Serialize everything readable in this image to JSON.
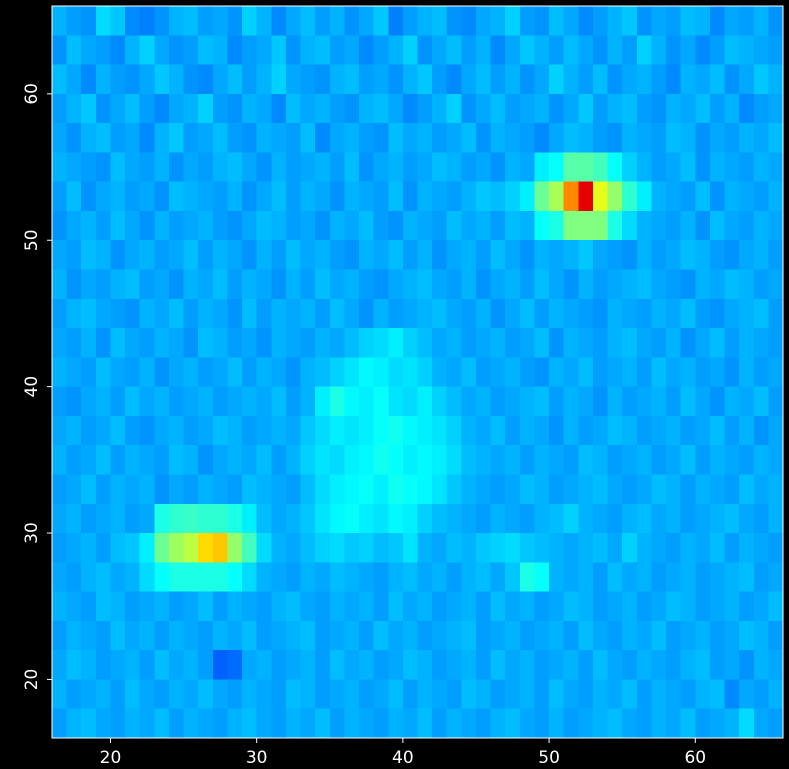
{
  "chart_data": {
    "type": "heatmap",
    "xlim": [
      16,
      66
    ],
    "ylim": [
      16,
      66
    ],
    "zlim": [
      0,
      100
    ],
    "xticks": [
      20,
      30,
      40,
      50,
      60
    ],
    "yticks": [
      20,
      30,
      40,
      50,
      60
    ],
    "colormap": "jet",
    "z": [
      [
        30,
        28,
        27,
        34,
        32,
        26,
        25,
        27,
        30,
        31,
        28,
        29,
        27,
        33,
        30,
        26,
        29,
        31,
        28,
        30,
        27,
        29,
        32,
        25,
        28,
        30,
        31,
        27,
        26,
        29,
        30,
        33,
        28,
        27,
        31,
        29,
        26,
        28,
        30,
        32,
        27,
        29,
        28,
        31,
        30,
        26,
        29,
        28,
        30,
        27
      ],
      [
        27,
        31,
        29,
        28,
        26,
        30,
        33,
        29,
        27,
        28,
        31,
        30,
        26,
        28,
        29,
        32,
        27,
        30,
        31,
        28,
        29,
        26,
        28,
        30,
        33,
        27,
        29,
        31,
        28,
        30,
        26,
        29,
        32,
        30,
        28,
        31,
        29,
        27,
        30,
        28,
        33,
        30,
        27,
        29,
        26,
        28,
        31,
        30,
        29,
        28
      ],
      [
        31,
        29,
        26,
        30,
        28,
        27,
        29,
        32,
        30,
        27,
        26,
        29,
        31,
        28,
        30,
        33,
        29,
        28,
        27,
        30,
        31,
        28,
        29,
        27,
        30,
        32,
        28,
        26,
        29,
        31,
        28,
        30,
        27,
        29,
        33,
        30,
        28,
        31,
        27,
        29,
        30,
        28,
        26,
        30,
        29,
        31,
        27,
        29,
        32,
        30
      ],
      [
        28,
        30,
        32,
        27,
        29,
        31,
        28,
        26,
        29,
        30,
        33,
        28,
        27,
        30,
        29,
        26,
        31,
        29,
        30,
        28,
        27,
        30,
        31,
        29,
        26,
        28,
        30,
        33,
        27,
        29,
        31,
        28,
        29,
        30,
        27,
        29,
        32,
        28,
        30,
        31,
        28,
        27,
        30,
        29,
        31,
        28,
        30,
        26,
        28,
        29
      ],
      [
        29,
        27,
        30,
        31,
        28,
        29,
        26,
        30,
        32,
        28,
        29,
        31,
        28,
        27,
        30,
        29,
        28,
        31,
        26,
        29,
        30,
        28,
        27,
        31,
        29,
        30,
        28,
        29,
        31,
        27,
        30,
        29,
        28,
        26,
        29,
        31,
        30,
        28,
        27,
        30,
        29,
        28,
        31,
        30,
        27,
        29,
        28,
        30,
        29,
        31
      ],
      [
        30,
        29,
        28,
        27,
        31,
        29,
        28,
        30,
        27,
        29,
        28,
        30,
        31,
        29,
        27,
        30,
        28,
        29,
        30,
        28,
        31,
        27,
        29,
        30,
        28,
        29,
        31,
        30,
        28,
        29,
        27,
        30,
        29,
        36,
        38,
        46,
        46,
        44,
        38,
        33,
        30,
        28,
        29,
        31,
        27,
        30,
        29,
        28,
        30,
        29
      ],
      [
        28,
        31,
        27,
        29,
        30,
        28,
        29,
        27,
        31,
        30,
        29,
        28,
        30,
        27,
        29,
        31,
        28,
        30,
        29,
        27,
        30,
        29,
        28,
        31,
        27,
        30,
        29,
        28,
        30,
        32,
        31,
        33,
        36,
        48,
        54,
        74,
        90,
        60,
        52,
        42,
        36,
        30,
        29,
        28,
        31,
        27,
        30,
        29,
        28,
        30
      ],
      [
        27,
        29,
        30,
        28,
        31,
        29,
        27,
        30,
        28,
        29,
        30,
        28,
        27,
        29,
        31,
        30,
        28,
        29,
        27,
        30,
        29,
        31,
        28,
        27,
        30,
        29,
        28,
        31,
        29,
        30,
        28,
        31,
        30,
        38,
        40,
        50,
        50,
        50,
        40,
        34,
        30,
        29,
        28,
        30,
        27,
        31,
        29,
        28,
        30,
        29
      ],
      [
        29,
        28,
        31,
        30,
        27,
        29,
        30,
        28,
        29,
        31,
        28,
        30,
        29,
        27,
        30,
        28,
        31,
        29,
        30,
        28,
        27,
        30,
        29,
        31,
        28,
        30,
        27,
        29,
        30,
        28,
        31,
        29,
        27,
        30,
        29,
        30,
        32,
        29,
        28,
        27,
        30,
        28,
        29,
        31,
        30,
        28,
        27,
        29,
        30,
        28
      ],
      [
        30,
        27,
        29,
        28,
        30,
        31,
        28,
        29,
        27,
        30,
        29,
        31,
        28,
        30,
        29,
        27,
        30,
        28,
        31,
        29,
        30,
        28,
        27,
        29,
        30,
        31,
        29,
        28,
        30,
        27,
        29,
        30,
        28,
        31,
        29,
        27,
        30,
        28,
        29,
        30,
        31,
        29,
        28,
        27,
        30,
        29,
        31,
        30,
        28,
        29
      ],
      [
        28,
        30,
        31,
        29,
        28,
        27,
        30,
        29,
        31,
        28,
        30,
        29,
        27,
        31,
        28,
        30,
        29,
        30,
        28,
        31,
        29,
        27,
        30,
        28,
        29,
        30,
        31,
        29,
        28,
        30,
        27,
        29,
        31,
        28,
        30,
        29,
        28,
        27,
        30,
        29,
        28,
        30,
        29,
        31,
        28,
        27,
        29,
        30,
        31,
        28
      ],
      [
        29,
        28,
        30,
        27,
        31,
        29,
        28,
        30,
        29,
        27,
        31,
        30,
        28,
        29,
        27,
        30,
        29,
        28,
        30,
        29,
        31,
        33,
        34,
        36,
        33,
        31,
        29,
        30,
        28,
        29,
        30,
        28,
        29,
        31,
        27,
        30,
        29,
        28,
        30,
        31,
        29,
        28,
        30,
        27,
        29,
        31,
        28,
        30,
        29,
        28
      ],
      [
        30,
        29,
        28,
        31,
        29,
        28,
        30,
        27,
        29,
        30,
        28,
        29,
        31,
        28,
        30,
        29,
        27,
        30,
        31,
        33,
        35,
        37,
        36,
        34,
        35,
        33,
        30,
        29,
        31,
        28,
        29,
        30,
        28,
        27,
        30,
        29,
        31,
        28,
        29,
        30,
        28,
        31,
        29,
        30,
        28,
        29,
        27,
        30,
        28,
        29
      ],
      [
        28,
        27,
        29,
        30,
        28,
        31,
        29,
        30,
        28,
        29,
        30,
        28,
        29,
        30,
        29,
        31,
        28,
        30,
        36,
        40,
        37,
        36,
        38,
        35,
        34,
        36,
        33,
        31,
        29,
        30,
        28,
        29,
        30,
        31,
        28,
        30,
        29,
        27,
        30,
        28,
        29,
        30,
        28,
        31,
        29,
        27,
        30,
        29,
        31,
        28
      ],
      [
        29,
        30,
        28,
        29,
        31,
        28,
        27,
        29,
        30,
        28,
        29,
        31,
        30,
        28,
        29,
        30,
        29,
        32,
        34,
        36,
        35,
        36,
        38,
        39,
        37,
        36,
        35,
        33,
        30,
        29,
        31,
        28,
        30,
        29,
        27,
        30,
        28,
        29,
        31,
        30,
        28,
        29,
        30,
        28,
        29,
        31,
        28,
        30,
        27,
        29
      ],
      [
        30,
        28,
        29,
        31,
        28,
        30,
        29,
        28,
        31,
        30,
        27,
        29,
        30,
        29,
        31,
        28,
        30,
        33,
        35,
        34,
        36,
        37,
        39,
        38,
        36,
        37,
        36,
        34,
        31,
        30,
        29,
        30,
        28,
        30,
        29,
        28,
        31,
        30,
        28,
        29,
        30,
        28,
        29,
        31,
        28,
        30,
        29,
        28,
        30,
        29
      ],
      [
        28,
        29,
        31,
        28,
        30,
        29,
        30,
        27,
        29,
        28,
        30,
        29,
        28,
        31,
        30,
        29,
        28,
        31,
        34,
        36,
        37,
        38,
        36,
        39,
        38,
        37,
        35,
        32,
        30,
        29,
        28,
        29,
        31,
        30,
        28,
        29,
        30,
        31,
        29,
        28,
        29,
        31,
        30,
        28,
        30,
        29,
        28,
        31,
        29,
        30
      ],
      [
        29,
        30,
        28,
        29,
        30,
        28,
        29,
        40,
        42,
        43,
        42,
        42,
        40,
        36,
        31,
        29,
        30,
        32,
        35,
        37,
        38,
        36,
        35,
        37,
        36,
        33,
        31,
        30,
        29,
        28,
        30,
        29,
        28,
        30,
        31,
        33,
        30,
        29,
        28,
        30,
        31,
        29,
        30,
        28,
        29,
        30,
        31,
        29,
        28,
        30
      ],
      [
        28,
        29,
        30,
        28,
        31,
        32,
        36,
        48,
        53,
        56,
        66,
        68,
        52,
        44,
        34,
        30,
        29,
        31,
        33,
        34,
        32,
        33,
        31,
        32,
        35,
        30,
        29,
        31,
        30,
        32,
        33,
        34,
        32,
        31,
        30,
        29,
        30,
        31,
        29,
        33,
        30,
        29,
        28,
        30,
        29,
        31,
        28,
        30,
        29,
        28
      ],
      [
        29,
        28,
        30,
        31,
        29,
        30,
        34,
        38,
        40,
        40,
        40,
        40,
        38,
        34,
        30,
        29,
        28,
        30,
        29,
        31,
        30,
        29,
        28,
        30,
        31,
        29,
        30,
        28,
        30,
        31,
        29,
        32,
        40,
        38,
        30,
        29,
        30,
        28,
        31,
        29,
        30,
        28,
        29,
        30,
        28,
        29,
        30,
        31,
        28,
        29
      ],
      [
        30,
        29,
        28,
        31,
        30,
        28,
        29,
        30,
        28,
        29,
        31,
        28,
        30,
        29,
        28,
        30,
        31,
        29,
        28,
        30,
        29,
        30,
        28,
        31,
        29,
        30,
        28,
        29,
        30,
        28,
        31,
        29,
        30,
        28,
        29,
        31,
        30,
        28,
        29,
        30,
        28,
        29,
        31,
        30,
        28,
        29,
        30,
        28,
        29,
        31
      ],
      [
        28,
        30,
        29,
        28,
        31,
        29,
        30,
        28,
        30,
        29,
        28,
        30,
        29,
        31,
        28,
        29,
        30,
        31,
        28,
        29,
        30,
        28,
        31,
        29,
        30,
        28,
        29,
        30,
        31,
        28,
        29,
        30,
        28,
        29,
        30,
        28,
        31,
        29,
        28,
        30,
        29,
        31,
        28,
        29,
        30,
        28,
        29,
        31,
        30,
        28
      ],
      [
        29,
        31,
        30,
        28,
        29,
        30,
        28,
        31,
        29,
        30,
        28,
        22,
        23,
        29,
        30,
        28,
        29,
        30,
        28,
        31,
        29,
        30,
        28,
        29,
        31,
        30,
        28,
        29,
        30,
        28,
        31,
        29,
        30,
        28,
        29,
        30,
        28,
        31,
        29,
        28,
        30,
        29,
        28,
        30,
        31,
        28,
        29,
        27,
        30,
        29
      ],
      [
        30,
        28,
        29,
        30,
        28,
        31,
        29,
        28,
        30,
        29,
        31,
        29,
        28,
        30,
        29,
        28,
        31,
        30,
        28,
        29,
        30,
        28,
        29,
        31,
        28,
        30,
        29,
        28,
        31,
        30,
        28,
        29,
        30,
        28,
        31,
        29,
        28,
        30,
        29,
        31,
        28,
        30,
        29,
        28,
        30,
        31,
        26,
        29,
        28,
        30
      ],
      [
        28,
        30,
        31,
        29,
        28,
        30,
        29,
        31,
        28,
        30,
        29,
        28,
        30,
        31,
        29,
        28,
        30,
        29,
        31,
        28,
        30,
        29,
        28,
        30,
        29,
        31,
        28,
        30,
        29,
        28,
        30,
        31,
        29,
        28,
        30,
        28,
        29,
        30,
        31,
        29,
        28,
        30,
        29,
        31,
        28,
        29,
        30,
        34,
        29,
        28
      ]
    ]
  }
}
